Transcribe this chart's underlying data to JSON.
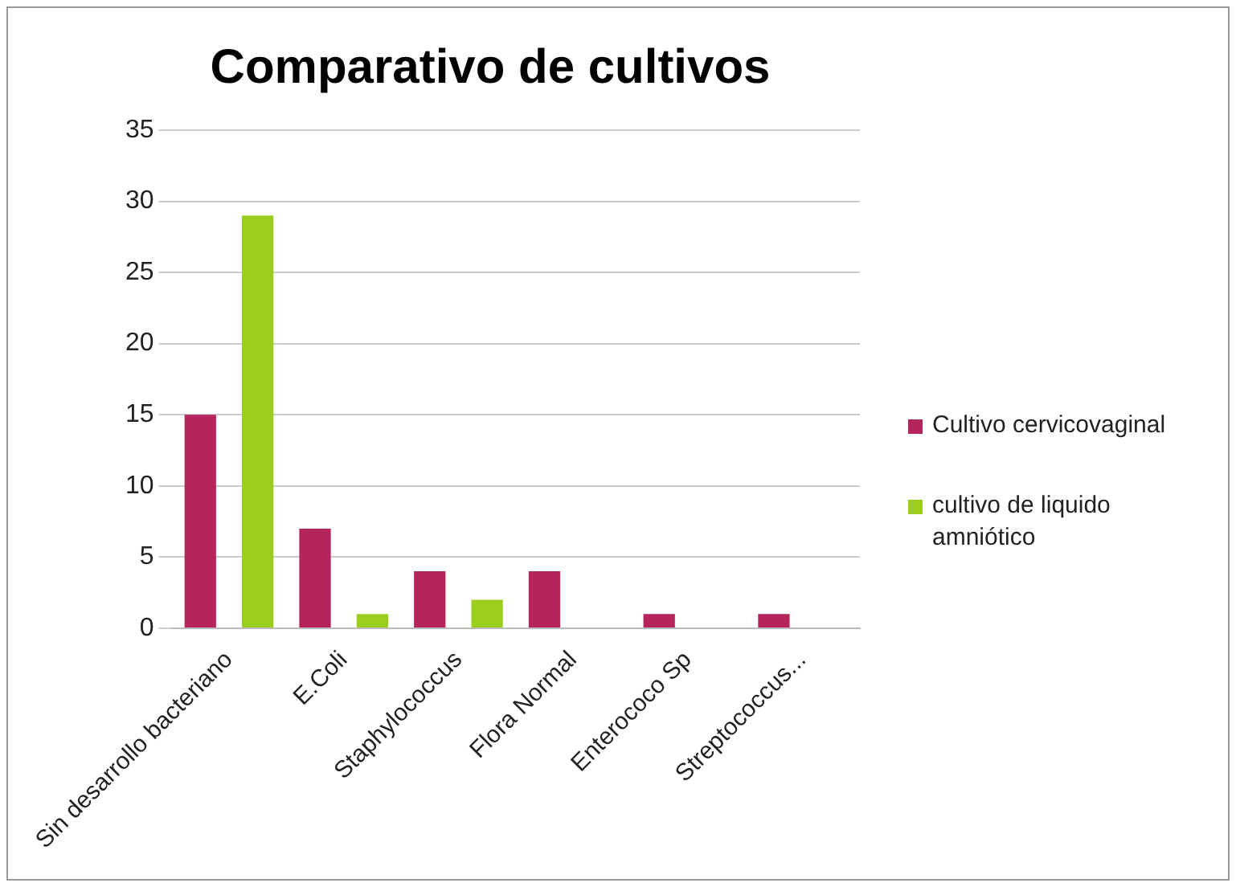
{
  "chart_data": {
    "type": "bar",
    "title": "Comparativo de cultivos",
    "categories": [
      "Sin desarrollo bacteriano",
      "E.Coli",
      "Staphylococcus",
      "Flora Normal",
      "Enterococo Sp",
      "Streptococcus..."
    ],
    "series": [
      {
        "name": "Cultivo cervicovaginal",
        "color": "#b5245a",
        "values": [
          15,
          7,
          4,
          4,
          1,
          1
        ]
      },
      {
        "name": "cultivo de liquido amniótico",
        "color": "#9acd1e",
        "values": [
          29,
          1,
          2,
          0,
          0,
          0
        ]
      }
    ],
    "ylim": [
      0,
      35
    ],
    "yticks": [
      0,
      5,
      10,
      15,
      20,
      25,
      30,
      35
    ],
    "grid": "y",
    "legend": "right"
  }
}
